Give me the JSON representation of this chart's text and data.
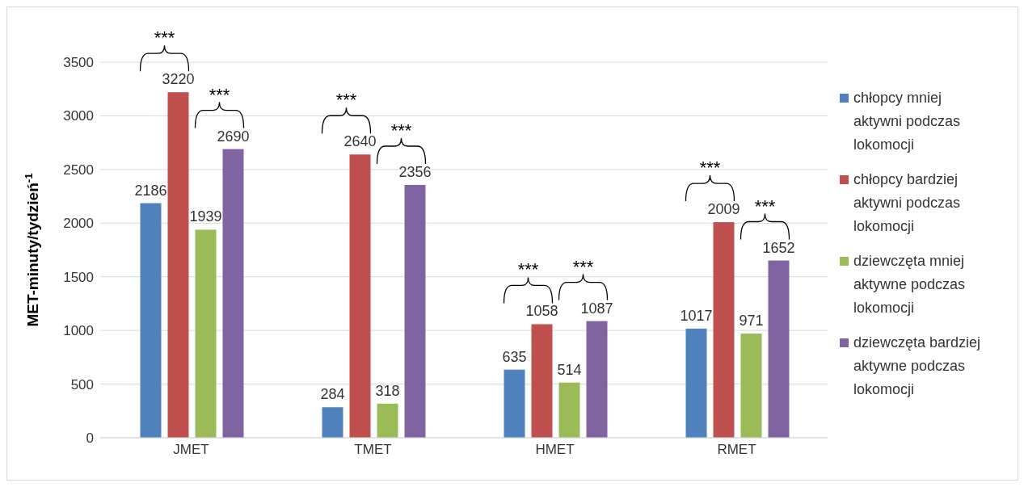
{
  "chart_data": {
    "type": "bar",
    "ylabel": "MET-minuty/tydzień$^{-1}$",
    "categories": [
      "JMET",
      "TMET",
      "HMET",
      "RMET"
    ],
    "series": [
      {
        "name": "chłopcy mniej aktywni podczas lokomocji",
        "color": "#4f81bd",
        "values": [
          2186,
          284,
          635,
          1017
        ]
      },
      {
        "name": "chłopcy bardziej aktywni podczas lokomocji",
        "color": "#c0504d",
        "values": [
          3220,
          2640,
          1058,
          2009
        ]
      },
      {
        "name": "dziewczęta mniej aktywne podczas lokomocji",
        "color": "#9bbb59",
        "values": [
          1939,
          318,
          514,
          971
        ]
      },
      {
        "name": "dziewczęta bardziej aktywne podczas lokomocji",
        "color": "#8064a2",
        "values": [
          2690,
          2356,
          1087,
          1652
        ]
      }
    ],
    "ylim": [
      0,
      3500
    ],
    "yticks": [
      0,
      500,
      1000,
      1500,
      2000,
      2500,
      3000,
      3500
    ],
    "grid": "y",
    "legend": "right",
    "data_labels": true,
    "annotations": [
      "***",
      "***",
      "***",
      "***",
      "***",
      "***",
      "***",
      "***"
    ]
  }
}
